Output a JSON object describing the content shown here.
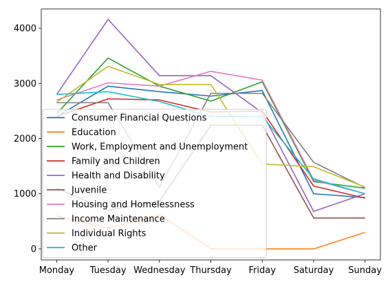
{
  "chart_data": {
    "type": "line",
    "title": "",
    "xlabel": "",
    "ylabel": "",
    "categories": [
      "Monday",
      "Tuesday",
      "Wednesday",
      "Thursday",
      "Friday",
      "Saturday",
      "Sunday"
    ],
    "ylim": [
      -200,
      4350
    ],
    "yticks": [
      0,
      1000,
      2000,
      3000,
      4000
    ],
    "grid": false,
    "legend_position": "lower-left",
    "series": [
      {
        "name": "Consumer Financial Questions",
        "color": "#1f77b4",
        "values": [
          2400,
          2950,
          2850,
          2770,
          2870,
          1000,
          930
        ]
      },
      {
        "name": "Education",
        "color": "#ff7f0e",
        "values": [
          600,
          370,
          620,
          0,
          0,
          0,
          300
        ]
      },
      {
        "name": "Work, Employment and Unemployment",
        "color": "#2ca02c",
        "values": [
          2450,
          3460,
          2950,
          2680,
          3030,
          1220,
          1100
        ]
      },
      {
        "name": "Family and Children",
        "color": "#d62728",
        "values": [
          2400,
          2720,
          2700,
          2480,
          2500,
          1140,
          920
        ]
      },
      {
        "name": "Health and Disability",
        "color": "#9467bd",
        "values": [
          2800,
          4160,
          3140,
          3140,
          2470,
          680,
          1000
        ]
      },
      {
        "name": "Juvenile",
        "color": "#8c564b",
        "values": [
          1100,
          700,
          870,
          2240,
          2240,
          560,
          560
        ]
      },
      {
        "name": "Housing and Homelessness",
        "color": "#e377c2",
        "values": [
          2700,
          3010,
          2950,
          3220,
          3060,
          1250,
          1000
        ]
      },
      {
        "name": "Income Maintenance",
        "color": "#7f7f7f",
        "values": [
          2650,
          2650,
          1120,
          2820,
          2820,
          1570,
          1110
        ]
      },
      {
        "name": "Individual Rights",
        "color": "#bcbd22",
        "values": [
          2660,
          3310,
          2980,
          2980,
          1540,
          1490,
          1120
        ]
      },
      {
        "name": "Other",
        "color": "#17becf",
        "values": [
          2800,
          2850,
          2670,
          2400,
          2400,
          1270,
          1000
        ]
      }
    ]
  }
}
